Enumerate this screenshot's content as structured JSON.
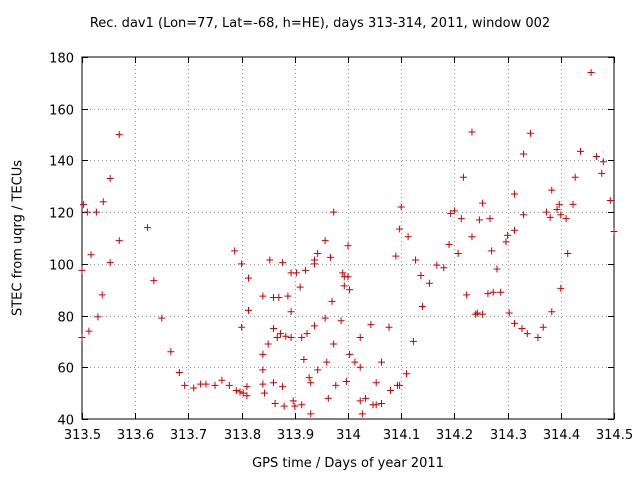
{
  "chart_data": {
    "type": "scatter",
    "title": "Rec. dav1 (Lon=77, Lat=-68, h=HE), days 313-314, 2011, window 002",
    "xlabel": "GPS time / Days of year 2011",
    "ylabel": "STEC from uqrg / TECUs",
    "xlim": [
      313.5,
      314.5
    ],
    "ylim": [
      40,
      180
    ],
    "xticks": [
      313.5,
      313.6,
      313.7,
      313.8,
      313.9,
      314,
      314.1,
      314.2,
      314.3,
      314.4,
      314.5
    ],
    "xtick_labels": [
      "313.5",
      "313.6",
      "313.7",
      "313.8",
      "313.9",
      "314",
      "314.1",
      "314.2",
      "314.3",
      "314.4",
      "314.5"
    ],
    "yticks": [
      40,
      60,
      80,
      100,
      120,
      140,
      160,
      180
    ],
    "ytick_labels": [
      "40",
      "60",
      "80",
      "100",
      "120",
      "140",
      "160",
      "180"
    ],
    "grid": true,
    "marker": "+",
    "color": "#cc0000",
    "points": [
      [
        313.5,
        71.5
      ],
      [
        313.5,
        97.5
      ],
      [
        313.503,
        123
      ],
      [
        313.51,
        120
      ],
      [
        313.513,
        74
      ],
      [
        313.517,
        103.5
      ],
      [
        313.527,
        120
      ],
      [
        313.53,
        79.5
      ],
      [
        313.538,
        88
      ],
      [
        313.54,
        124
      ],
      [
        313.553,
        133
      ],
      [
        313.553,
        100.5
      ],
      [
        313.57,
        150
      ],
      [
        313.57,
        109
      ],
      [
        313.623,
        114
      ],
      [
        313.635,
        93.5
      ],
      [
        313.65,
        79
      ],
      [
        313.667,
        66
      ],
      [
        313.683,
        58
      ],
      [
        313.693,
        53
      ],
      [
        313.71,
        52
      ],
      [
        313.723,
        53.5
      ],
      [
        313.733,
        53.5
      ],
      [
        313.75,
        53
      ],
      [
        313.763,
        55
      ],
      [
        313.777,
        53
      ],
      [
        313.79,
        51
      ],
      [
        313.787,
        105
      ],
      [
        313.797,
        50.5
      ],
      [
        313.8,
        100
      ],
      [
        313.8,
        75.5
      ],
      [
        313.803,
        50
      ],
      [
        313.81,
        49
      ],
      [
        313.81,
        52.5
      ],
      [
        313.813,
        94.5
      ],
      [
        313.813,
        82
      ],
      [
        313.84,
        87.5
      ],
      [
        313.84,
        65
      ],
      [
        313.84,
        59
      ],
      [
        313.84,
        53.5
      ],
      [
        313.843,
        50
      ],
      [
        313.85,
        69
      ],
      [
        313.853,
        101.5
      ],
      [
        313.86,
        87
      ],
      [
        313.86,
        75
      ],
      [
        313.86,
        54
      ],
      [
        313.863,
        46
      ],
      [
        313.867,
        71.5
      ],
      [
        313.87,
        87
      ],
      [
        313.873,
        73
      ],
      [
        313.877,
        100.5
      ],
      [
        313.877,
        52.5
      ],
      [
        313.88,
        45
      ],
      [
        313.883,
        72
      ],
      [
        313.887,
        87.5
      ],
      [
        313.893,
        96.5
      ],
      [
        313.893,
        81.5
      ],
      [
        313.893,
        71.5
      ],
      [
        313.897,
        47
      ],
      [
        313.9,
        45
      ],
      [
        313.903,
        96.5
      ],
      [
        313.91,
        91
      ],
      [
        313.913,
        71.5
      ],
      [
        313.913,
        45.5
      ],
      [
        313.917,
        63
      ],
      [
        313.92,
        97.5
      ],
      [
        313.923,
        73
      ],
      [
        313.927,
        56
      ],
      [
        313.93,
        54
      ],
      [
        313.93,
        42
      ],
      [
        313.937,
        100
      ],
      [
        313.937,
        101.5
      ],
      [
        313.937,
        76
      ],
      [
        313.943,
        59
      ],
      [
        313.943,
        104
      ],
      [
        313.957,
        109
      ],
      [
        313.957,
        79
      ],
      [
        313.96,
        62
      ],
      [
        313.963,
        48
      ],
      [
        313.967,
        102.5
      ],
      [
        313.97,
        85.5
      ],
      [
        313.973,
        120
      ],
      [
        313.973,
        69
      ],
      [
        313.977,
        53
      ],
      [
        313.987,
        78
      ],
      [
        313.99,
        96.5
      ],
      [
        313.993,
        95
      ],
      [
        313.993,
        91.5
      ],
      [
        313.997,
        54.5
      ],
      [
        314,
        107
      ],
      [
        314,
        95
      ],
      [
        314.003,
        65
      ],
      [
        314.003,
        90
      ],
      [
        314.013,
        62
      ],
      [
        314.023,
        71.5
      ],
      [
        314.023,
        60
      ],
      [
        314.023,
        47
      ],
      [
        314.027,
        42
      ],
      [
        314.033,
        48
      ],
      [
        314.043,
        76.5
      ],
      [
        314.047,
        45.5
      ],
      [
        314.053,
        54
      ],
      [
        314.053,
        45.5
      ],
      [
        314.063,
        46
      ],
      [
        314.063,
        62
      ],
      [
        314.077,
        75.5
      ],
      [
        314.08,
        51
      ],
      [
        314.09,
        103
      ],
      [
        314.093,
        53
      ],
      [
        314.097,
        53
      ],
      [
        314.097,
        113.5
      ],
      [
        314.1,
        122
      ],
      [
        314.11,
        57.5
      ],
      [
        314.113,
        110.5
      ],
      [
        314.123,
        70
      ],
      [
        314.127,
        101.5
      ],
      [
        314.137,
        95.5
      ],
      [
        314.14,
        83.5
      ],
      [
        314.153,
        92.5
      ],
      [
        314.167,
        99.5
      ],
      [
        314.18,
        98.5
      ],
      [
        314.19,
        107.5
      ],
      [
        314.193,
        119.5
      ],
      [
        314.2,
        120.5
      ],
      [
        314.207,
        104
      ],
      [
        314.213,
        117.5
      ],
      [
        314.217,
        133.5
      ],
      [
        314.223,
        88
      ],
      [
        314.233,
        151
      ],
      [
        314.233,
        110.5
      ],
      [
        314.24,
        80.5
      ],
      [
        314.243,
        81
      ],
      [
        314.247,
        117
      ],
      [
        314.253,
        123.5
      ],
      [
        314.253,
        80.5
      ],
      [
        314.263,
        88.5
      ],
      [
        314.267,
        117.5
      ],
      [
        314.27,
        105
      ],
      [
        314.273,
        89
      ],
      [
        314.28,
        98
      ],
      [
        314.287,
        89
      ],
      [
        314.297,
        108.5
      ],
      [
        314.3,
        111
      ],
      [
        314.303,
        81
      ],
      [
        314.313,
        127
      ],
      [
        314.313,
        113
      ],
      [
        314.313,
        77
      ],
      [
        314.327,
        75
      ],
      [
        314.33,
        119
      ],
      [
        314.33,
        142.5
      ],
      [
        314.337,
        73
      ],
      [
        314.343,
        150.5
      ],
      [
        314.357,
        71.5
      ],
      [
        314.367,
        75.5
      ],
      [
        314.373,
        120
      ],
      [
        314.38,
        118
      ],
      [
        314.383,
        128.5
      ],
      [
        314.383,
        81.5
      ],
      [
        314.393,
        121
      ],
      [
        314.397,
        123
      ],
      [
        314.4,
        119
      ],
      [
        314.4,
        90.5
      ],
      [
        314.41,
        117.5
      ],
      [
        314.413,
        104
      ],
      [
        314.423,
        123
      ],
      [
        314.427,
        133.5
      ],
      [
        314.437,
        143.5
      ],
      [
        314.457,
        174
      ],
      [
        314.467,
        141.5
      ],
      [
        314.477,
        135
      ],
      [
        314.48,
        139.5
      ],
      [
        314.493,
        124.5
      ],
      [
        314.5,
        112.5
      ]
    ]
  }
}
